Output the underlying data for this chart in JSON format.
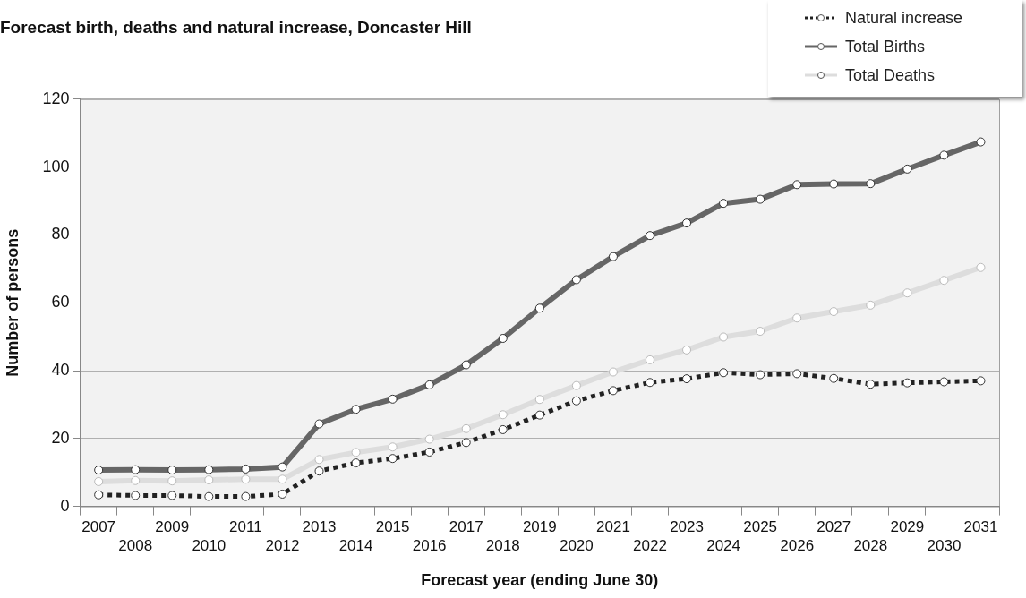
{
  "chart_data": {
    "type": "line",
    "title": "Forecast birth, deaths and natural increase, Doncaster Hill",
    "xlabel": "Forecast year (ending June 30)",
    "ylabel": "Number of persons",
    "categories": [
      "2007",
      "2008",
      "2009",
      "2010",
      "2011",
      "2012",
      "2013",
      "2014",
      "2015",
      "2016",
      "2017",
      "2018",
      "2019",
      "2020",
      "2021",
      "2022",
      "2023",
      "2024",
      "2025",
      "2026",
      "2027",
      "2028",
      "2029",
      "2030",
      "2031"
    ],
    "series": [
      {
        "name": "Natural increase",
        "color": "#222222",
        "line_style": "dotted",
        "values": [
          3.4,
          3.2,
          3.2,
          2.9,
          2.9,
          3.6,
          10.4,
          12.8,
          14.1,
          16.0,
          18.8,
          22.6,
          26.9,
          31.1,
          34.1,
          36.5,
          37.6,
          39.4,
          38.8,
          39.1,
          37.7,
          36.0,
          36.4,
          36.7,
          37.0
        ]
      },
      {
        "name": "Total Births",
        "color": "#666666",
        "line_style": "solid",
        "values": [
          10.7,
          10.8,
          10.7,
          10.8,
          11.0,
          11.6,
          24.3,
          28.6,
          31.6,
          35.8,
          41.7,
          49.5,
          58.4,
          66.8,
          73.6,
          79.8,
          83.5,
          89.3,
          90.5,
          94.8,
          95.0,
          95.1,
          99.4,
          103.5,
          107.4
        ]
      },
      {
        "name": "Total Deaths",
        "color": "#dddddd",
        "line_style": "solid",
        "values": [
          7.3,
          7.6,
          7.5,
          7.8,
          8.0,
          8.0,
          13.8,
          15.9,
          17.5,
          19.8,
          22.9,
          27.0,
          31.5,
          35.6,
          39.6,
          43.2,
          46.1,
          49.9,
          51.6,
          55.5,
          57.4,
          59.3,
          62.9,
          66.6,
          70.4
        ]
      }
    ],
    "ylim": [
      0,
      120
    ],
    "yticks": [
      0,
      20,
      40,
      60,
      80,
      100,
      120
    ],
    "grid": "y",
    "legend": "top right",
    "marker": "circle"
  }
}
